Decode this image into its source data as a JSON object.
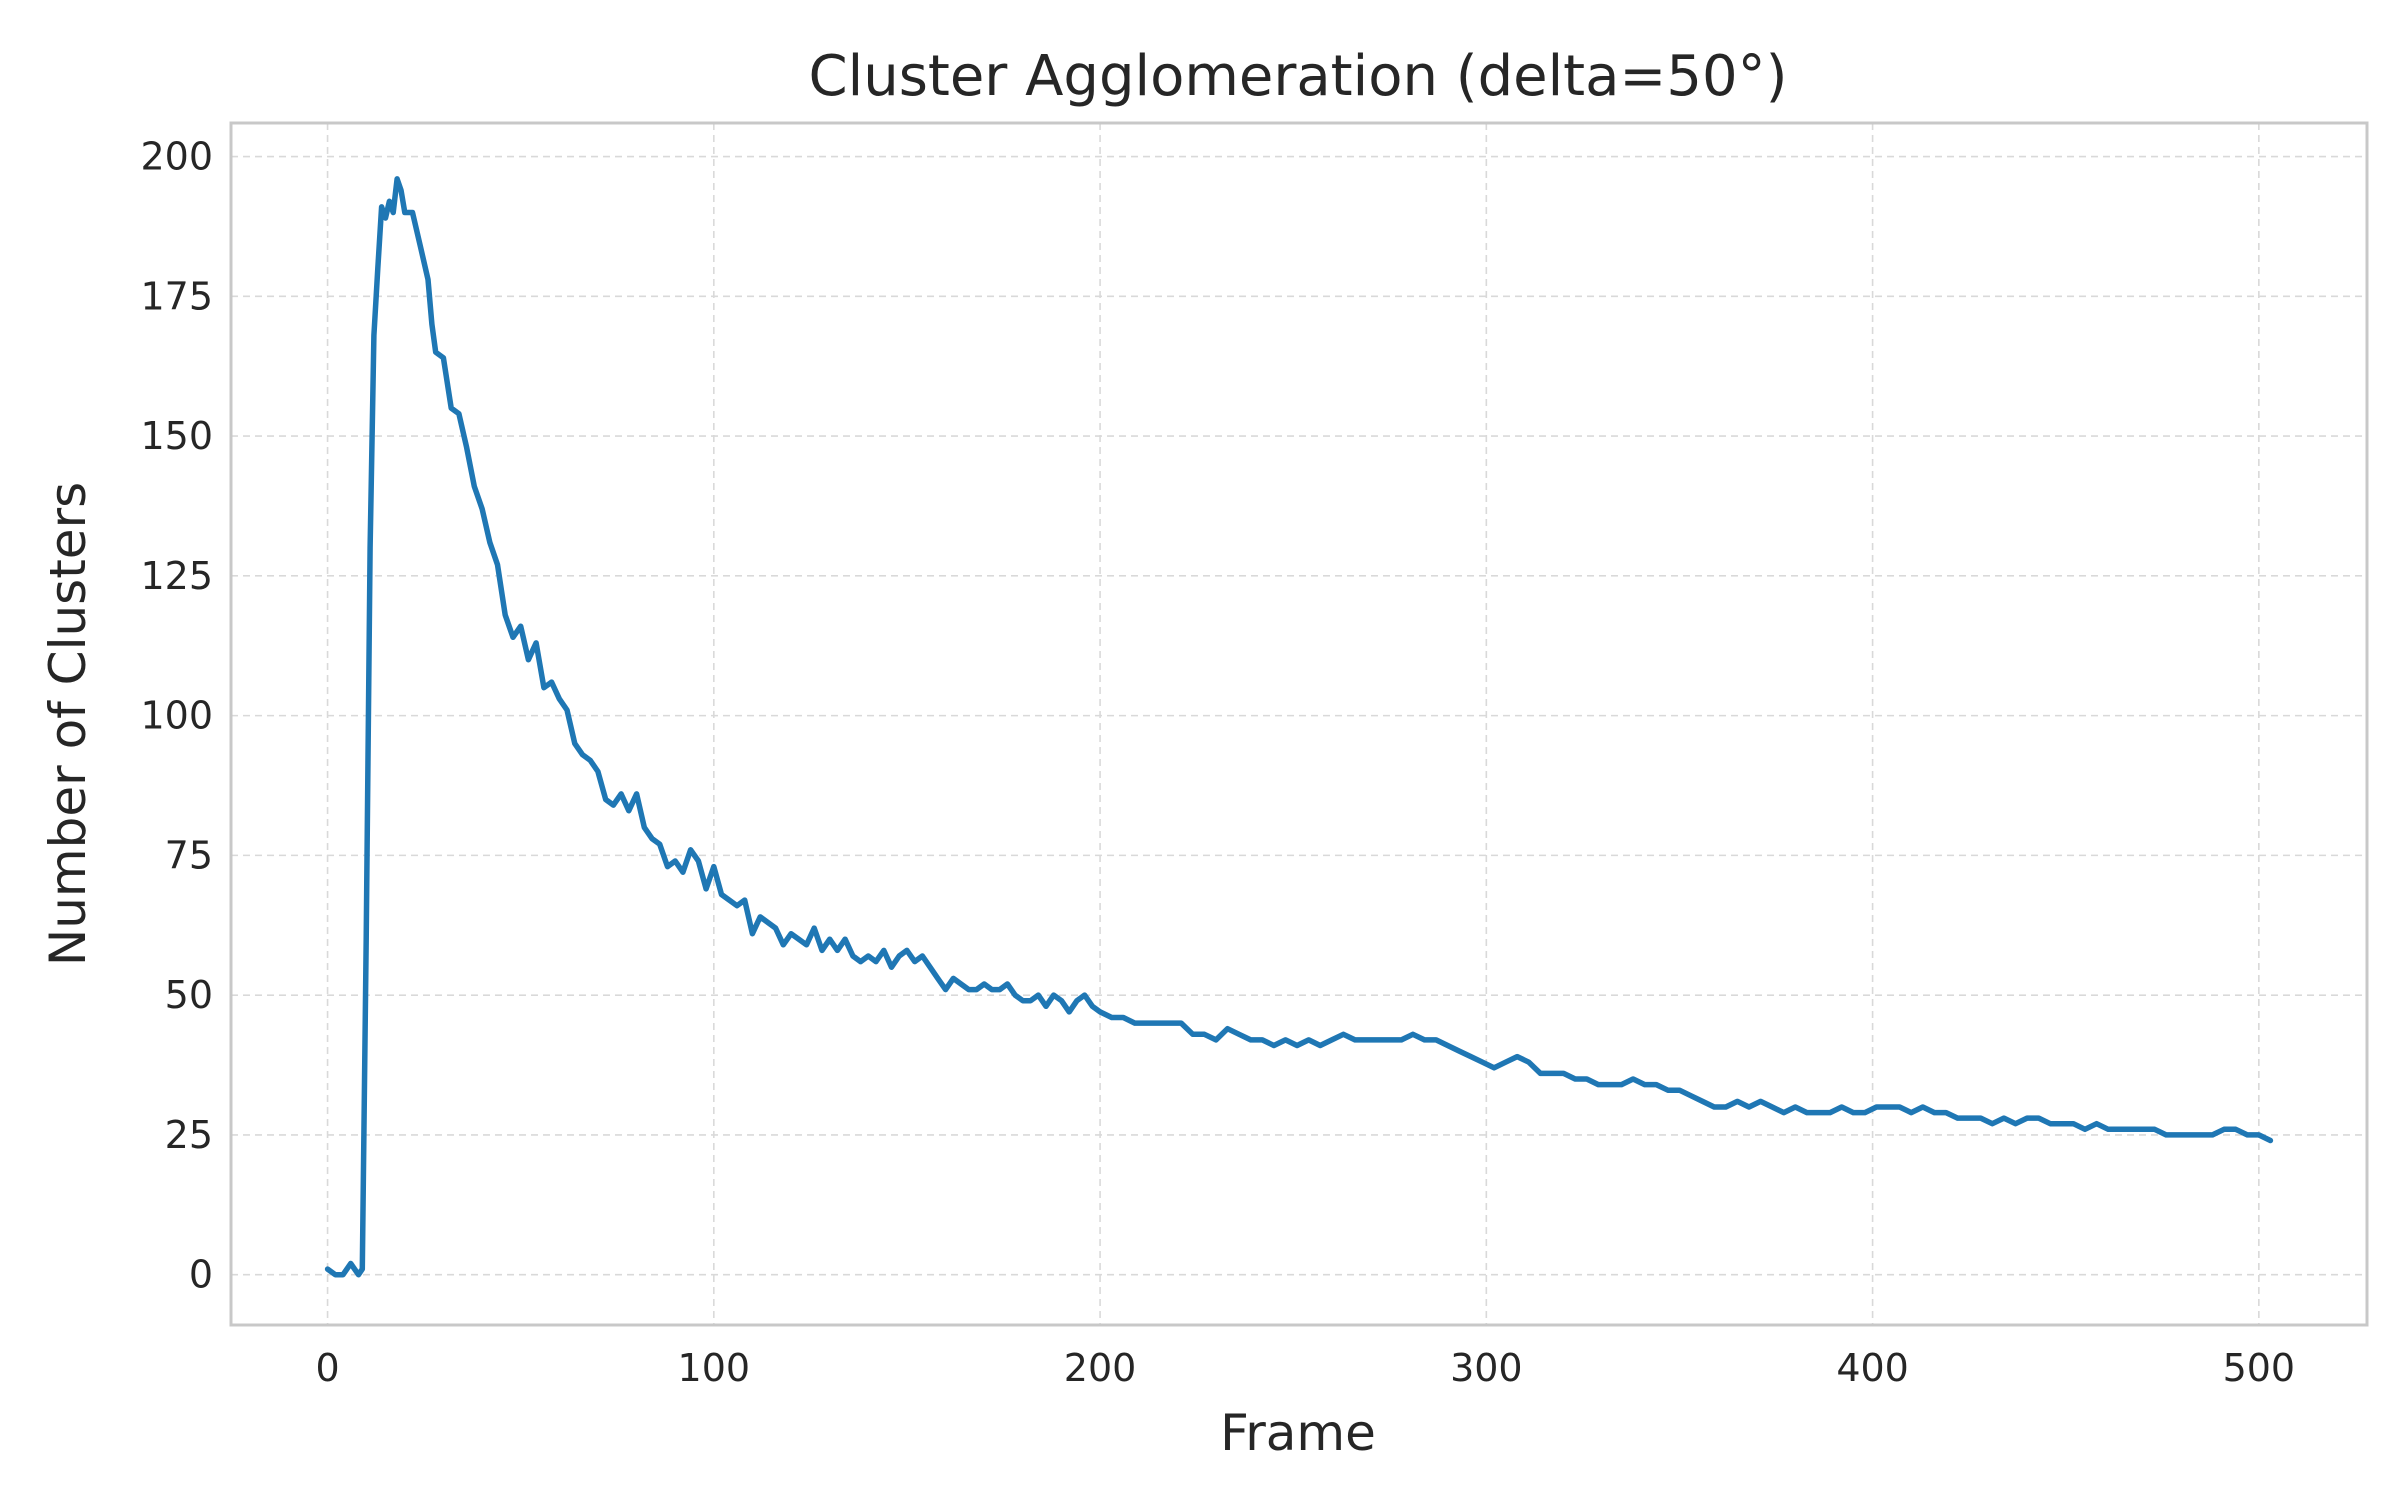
{
  "chart_data": {
    "type": "line",
    "title": "Cluster Agglomeration (delta=50°)",
    "xlabel": "Frame",
    "ylabel": "Number of Clusters",
    "xlim": [
      -25,
      528
    ],
    "ylim": [
      -9,
      206
    ],
    "xticks": [
      0,
      100,
      200,
      300,
      400,
      500
    ],
    "yticks": [
      0,
      25,
      50,
      75,
      100,
      125,
      150,
      175,
      200
    ],
    "grid": true,
    "legend": "none",
    "colors": {
      "line": "#1f77b4",
      "grid": "#d9d9d9",
      "frame": "#c8c8c8",
      "text": "#262626"
    },
    "series": [
      {
        "x": [
          0,
          2,
          4,
          6,
          8,
          9,
          10,
          11,
          12,
          13,
          14,
          15,
          16,
          17,
          18,
          19,
          20,
          22,
          24,
          26,
          27,
          28,
          30,
          32,
          34,
          36,
          38,
          40,
          42,
          44,
          46,
          48,
          50,
          52,
          54,
          56,
          58,
          60,
          62,
          64,
          66,
          68,
          70,
          72,
          74,
          76,
          78,
          80,
          82,
          84,
          86,
          88,
          90,
          92,
          94,
          96,
          98,
          100,
          102,
          104,
          106,
          108,
          110,
          112,
          114,
          116,
          118,
          120,
          122,
          124,
          126,
          128,
          130,
          132,
          134,
          136,
          138,
          140,
          142,
          144,
          146,
          148,
          150,
          152,
          154,
          156,
          158,
          160,
          162,
          164,
          166,
          168,
          170,
          172,
          174,
          176,
          178,
          180,
          182,
          184,
          186,
          188,
          190,
          192,
          194,
          196,
          198,
          200,
          203,
          206,
          209,
          212,
          215,
          218,
          221,
          224,
          227,
          230,
          233,
          236,
          239,
          242,
          245,
          248,
          251,
          254,
          257,
          260,
          263,
          266,
          269,
          272,
          275,
          278,
          281,
          284,
          287,
          290,
          293,
          296,
          299,
          302,
          305,
          308,
          311,
          314,
          317,
          320,
          323,
          326,
          329,
          332,
          335,
          338,
          341,
          344,
          347,
          350,
          353,
          356,
          359,
          362,
          365,
          368,
          371,
          374,
          377,
          380,
          383,
          386,
          389,
          392,
          395,
          398,
          401,
          404,
          407,
          410,
          413,
          416,
          419,
          422,
          425,
          428,
          431,
          434,
          437,
          440,
          443,
          446,
          449,
          452,
          455,
          458,
          461,
          464,
          467,
          470,
          473,
          476,
          479,
          482,
          485,
          488,
          491,
          494,
          497,
          500,
          503
        ],
        "y": [
          1,
          0,
          0,
          2,
          0,
          1,
          60,
          130,
          168,
          180,
          191,
          189,
          192,
          190,
          196,
          194,
          190,
          190,
          184,
          178,
          170,
          165,
          164,
          155,
          154,
          148,
          141,
          137,
          131,
          127,
          118,
          114,
          116,
          110,
          113,
          105,
          106,
          103,
          101,
          95,
          93,
          92,
          90,
          85,
          84,
          86,
          83,
          86,
          80,
          78,
          77,
          73,
          74,
          72,
          76,
          74,
          69,
          73,
          68,
          67,
          66,
          67,
          61,
          64,
          63,
          62,
          59,
          61,
          60,
          59,
          62,
          58,
          60,
          58,
          60,
          57,
          56,
          57,
          56,
          58,
          55,
          57,
          58,
          56,
          57,
          55,
          53,
          51,
          53,
          52,
          51,
          51,
          52,
          51,
          51,
          52,
          50,
          49,
          49,
          50,
          48,
          50,
          49,
          47,
          49,
          50,
          48,
          47,
          46,
          46,
          45,
          45,
          45,
          45,
          45,
          43,
          43,
          42,
          44,
          43,
          42,
          42,
          41,
          42,
          41,
          42,
          41,
          42,
          43,
          42,
          42,
          42,
          42,
          42,
          43,
          42,
          42,
          41,
          40,
          39,
          38,
          37,
          38,
          39,
          38,
          36,
          36,
          36,
          35,
          35,
          34,
          34,
          34,
          35,
          34,
          34,
          33,
          33,
          32,
          31,
          30,
          30,
          31,
          30,
          31,
          30,
          29,
          30,
          29,
          29,
          29,
          30,
          29,
          29,
          30,
          30,
          30,
          29,
          30,
          29,
          29,
          28,
          28,
          28,
          27,
          28,
          27,
          28,
          28,
          27,
          27,
          27,
          26,
          27,
          26,
          26,
          26,
          26,
          26,
          25,
          25,
          25,
          25,
          25,
          26,
          26,
          25,
          25,
          24
        ]
      }
    ]
  }
}
